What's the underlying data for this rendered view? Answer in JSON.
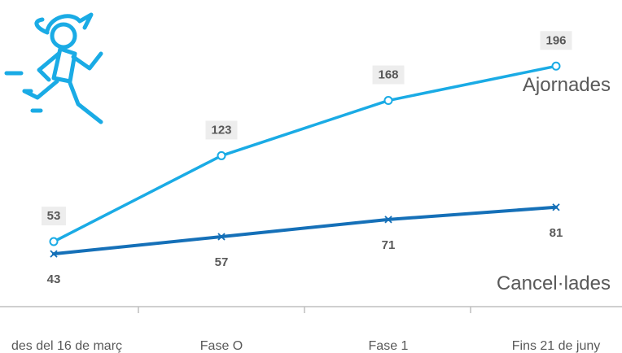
{
  "chart_data": {
    "type": "line",
    "categories": [
      "des del 16 de març",
      "Fase O",
      "Fase 1",
      "Fins 21 de juny"
    ],
    "series": [
      {
        "name": "Ajornades",
        "values": [
          53,
          123,
          168,
          196
        ],
        "color": "#1aabe5",
        "marker": "circle"
      },
      {
        "name": "Cancel·lades",
        "values": [
          43,
          57,
          71,
          81
        ],
        "color": "#1570b8",
        "marker": "x"
      }
    ],
    "ylim": [
      0,
      230
    ],
    "grid": false,
    "legend": "inline-right",
    "xlabel": "",
    "ylabel": ""
  },
  "icon": {
    "name": "running-person-icon",
    "color": "#1aabe5"
  }
}
